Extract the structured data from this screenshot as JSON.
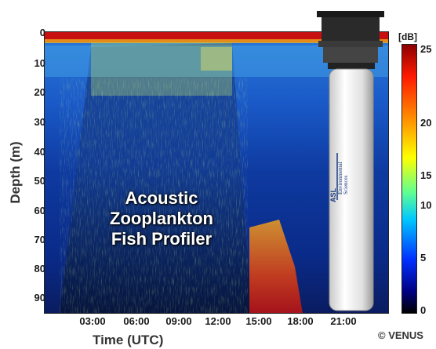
{
  "figure": {
    "x_axis_label": "Time (UTC)",
    "y_axis_label": "Depth (m)",
    "x_ticks": [
      "03:00",
      "06:00",
      "09:00",
      "12:00",
      "15:00",
      "18:00",
      "21:00"
    ],
    "y_ticks": [
      "0",
      "10",
      "20",
      "30",
      "40",
      "50",
      "60",
      "70",
      "80",
      "90"
    ],
    "colorbar_unit": "[dB]",
    "colorbar_ticks": [
      "25",
      "20",
      "15",
      "10",
      "5",
      "0"
    ],
    "overlay_lines": [
      "Acoustic",
      "Zooplankton",
      "Fish Profiler"
    ],
    "credit": "© VENUS",
    "instrument_logo_text": [
      "ASL",
      "Environmental",
      "Sciences"
    ],
    "colors": {
      "background_blue": "#0a3aa8",
      "surface_band": "#c81010",
      "bottom_echo": "#e04010",
      "plankton_layer": "#7ac8e0"
    }
  }
}
